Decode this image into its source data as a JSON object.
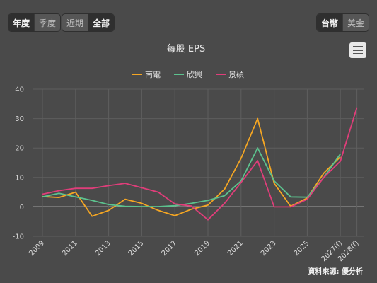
{
  "controls": {
    "period": [
      {
        "label": "年度",
        "active": true
      },
      {
        "label": "季度",
        "active": false
      }
    ],
    "range": [
      {
        "label": "近期",
        "active": false
      },
      {
        "label": "全部",
        "active": true
      }
    ],
    "currency": [
      {
        "label": "台幣",
        "active": true
      },
      {
        "label": "美金",
        "active": false
      }
    ],
    "menu_icon": "hamburger-menu-icon"
  },
  "chart_data": {
    "type": "line",
    "title": "每股 EPS",
    "xlabel": "",
    "ylabel": "",
    "x": [
      "2009",
      "2010",
      "2011",
      "2012",
      "2013",
      "2014",
      "2015",
      "2016",
      "2017",
      "2018",
      "2019",
      "2020",
      "2021",
      "2022",
      "2023",
      "2024",
      "2025",
      "2026",
      "2027(f)",
      "2028(f)"
    ],
    "x_tick_labels": [
      "2009",
      "2011",
      "2013",
      "2015",
      "2017",
      "2019",
      "2021",
      "2023",
      "2025",
      "2027(f)",
      "2028(f)"
    ],
    "ylim": [
      -10,
      40
    ],
    "y_ticks": [
      -10,
      0,
      10,
      20,
      30,
      40
    ],
    "grid": true,
    "legend_position": "top-center",
    "series": [
      {
        "name": "南電",
        "color": "#f5a623",
        "values": [
          3.5,
          3.2,
          5.0,
          -3.2,
          -1.2,
          2.6,
          1.2,
          -1.2,
          -3.0,
          -0.8,
          0.6,
          6.0,
          16.5,
          30.0,
          8.0,
          0.2,
          3.0,
          11.5,
          17.0,
          null
        ]
      },
      {
        "name": "欣興",
        "color": "#5cc28e",
        "values": [
          3.4,
          4.6,
          3.4,
          2.2,
          0.8,
          0.2,
          0.1,
          0.1,
          0.4,
          1.2,
          2.2,
          3.8,
          8.8,
          20.0,
          8.8,
          3.4,
          3.3,
          10.0,
          18.0,
          null
        ]
      },
      {
        "name": "景碩",
        "color": "#e03e7a",
        "values": [
          4.3,
          5.5,
          6.3,
          6.3,
          7.2,
          8.0,
          6.5,
          5.0,
          1.0,
          0.3,
          -4.4,
          1.2,
          8.3,
          15.7,
          0.0,
          0.0,
          2.6,
          10.0,
          15.5,
          33.8
        ]
      }
    ],
    "source": "資料來源: 優分析"
  }
}
